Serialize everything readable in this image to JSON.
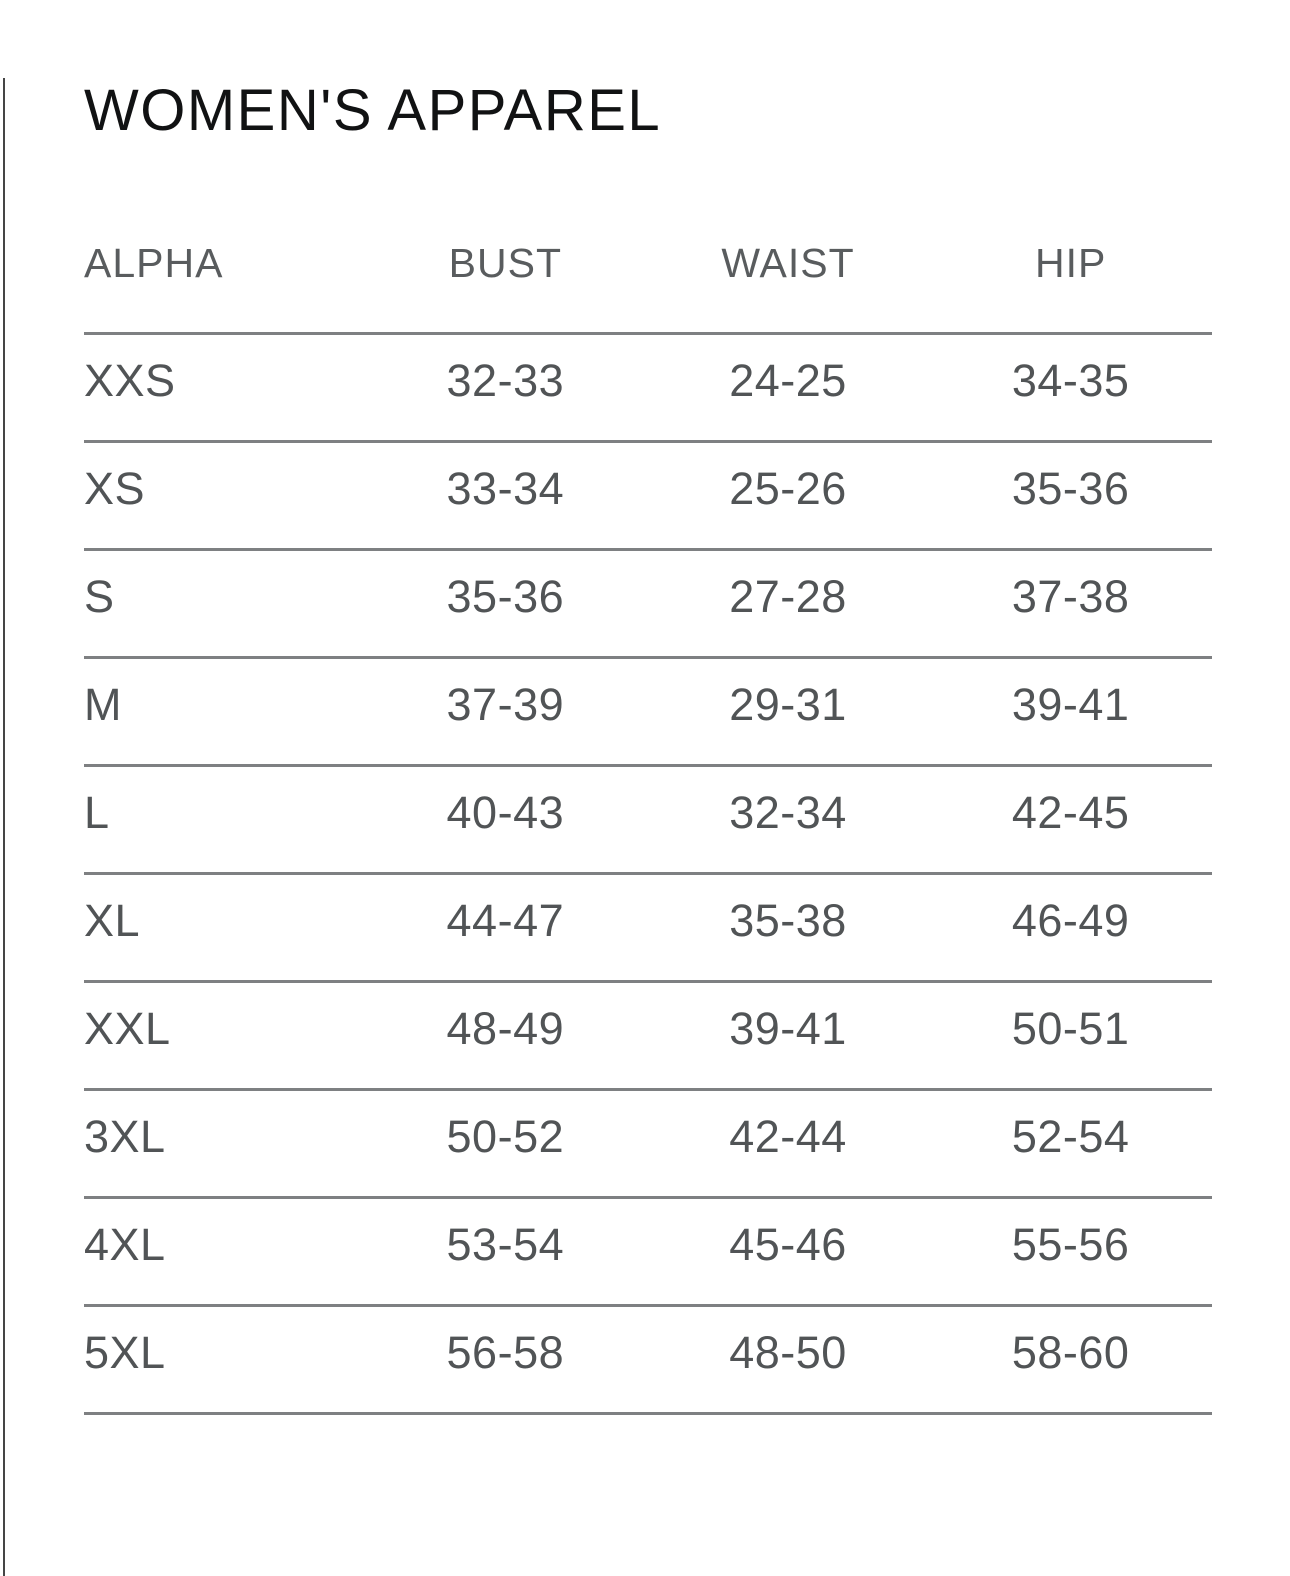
{
  "page": {
    "title": "WOMEN'S APPAREL"
  },
  "table": {
    "columns": [
      "ALPHA",
      "BUST",
      "WAIST",
      "HIP"
    ],
    "rows": [
      {
        "alpha": "XXS",
        "bust": "32-33",
        "waist": "24-25",
        "hip": "34-35"
      },
      {
        "alpha": "XS",
        "bust": "33-34",
        "waist": "25-26",
        "hip": "35-36"
      },
      {
        "alpha": "S",
        "bust": "35-36",
        "waist": "27-28",
        "hip": "37-38"
      },
      {
        "alpha": "M",
        "bust": "37-39",
        "waist": "29-31",
        "hip": "39-41"
      },
      {
        "alpha": "L",
        "bust": "40-43",
        "waist": "32-34",
        "hip": "42-45"
      },
      {
        "alpha": "XL",
        "bust": "44-47",
        "waist": "35-38",
        "hip": "46-49"
      },
      {
        "alpha": "XXL",
        "bust": "48-49",
        "waist": "39-41",
        "hip": "50-51"
      },
      {
        "alpha": "3XL",
        "bust": "50-52",
        "waist": "42-44",
        "hip": "52-54"
      },
      {
        "alpha": "4XL",
        "bust": "53-54",
        "waist": "45-46",
        "hip": "55-56"
      },
      {
        "alpha": "5XL",
        "bust": "56-58",
        "waist": "48-50",
        "hip": "58-60"
      }
    ]
  },
  "colors": {
    "title_text": "#111213",
    "header_text": "#595c5e",
    "cell_text": "#515456",
    "divider": "#7e8082",
    "panel_border": "#454545",
    "background": "#ffffff"
  }
}
